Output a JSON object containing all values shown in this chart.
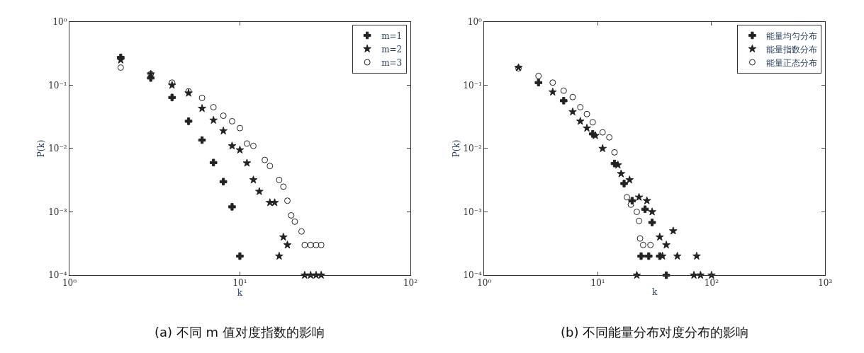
{
  "chart_data": [
    {
      "type": "scatter",
      "xlabel": "k",
      "ylabel": "P(k)",
      "annotations": [
        "(a) 不同 m 值对度指数的影响"
      ],
      "log": "xy",
      "grid": false,
      "legend": "top right",
      "xlim": [
        1,
        100
      ],
      "ylim": [
        0.0001,
        1
      ],
      "xticks": [
        {
          "value": 1,
          "label": "10⁰"
        },
        {
          "value": 10,
          "label": "10¹"
        },
        {
          "value": 100,
          "label": "10²"
        }
      ],
      "yticks": [
        {
          "value": 0.0001,
          "label": "10⁻⁴"
        },
        {
          "value": 0.001,
          "label": "10⁻³"
        },
        {
          "value": 0.01,
          "label": "10⁻²"
        },
        {
          "value": 0.1,
          "label": "10⁻¹"
        },
        {
          "value": 1,
          "label": "10⁰"
        }
      ],
      "series": [
        {
          "name": "m=1",
          "color": "#222222",
          "marker": "cross",
          "x": [
            2,
            3,
            4,
            5,
            6,
            7,
            8,
            9,
            10
          ],
          "values": [
            0.275,
            0.13,
            0.064,
            0.027,
            0.0136,
            0.006,
            0.003,
            0.0012,
            0.0002
          ]
        },
        {
          "name": "m=2",
          "color": "#222222",
          "marker": "star",
          "x": [
            2,
            3,
            4,
            5,
            6,
            7,
            8,
            9,
            10,
            11,
            12,
            13,
            15,
            16,
            17,
            18,
            19,
            24,
            26,
            28,
            30
          ],
          "values": [
            0.25,
            0.15,
            0.1,
            0.075,
            0.043,
            0.028,
            0.019,
            0.011,
            0.0095,
            0.0059,
            0.0032,
            0.0021,
            0.0014,
            0.0014,
            0.0002,
            0.0004,
            0.0003,
            0.0001,
            0.0001,
            0.0001,
            0.0001
          ]
        },
        {
          "name": "m=3",
          "color": "#222222",
          "marker": "circle",
          "x": [
            2,
            3,
            4,
            5,
            6,
            7,
            8,
            9,
            10,
            11,
            12,
            14,
            15,
            17,
            18,
            19,
            20,
            21,
            23,
            24,
            26,
            28,
            30
          ],
          "values": [
            0.19,
            0.15,
            0.11,
            0.08,
            0.063,
            0.045,
            0.033,
            0.027,
            0.021,
            0.012,
            0.011,
            0.0066,
            0.0053,
            0.0032,
            0.0025,
            0.0015,
            0.00088,
            0.0007,
            0.00049,
            0.0003,
            0.0003,
            0.0003,
            0.0003
          ]
        }
      ]
    },
    {
      "type": "scatter",
      "xlabel": "k",
      "ylabel": "P(k)",
      "annotations": [
        "(b) 不同能量分布对度分布的影响"
      ],
      "log": "xy",
      "grid": false,
      "legend": "top right",
      "xlim": [
        1,
        1000
      ],
      "ylim": [
        0.0001,
        1
      ],
      "xticks": [
        {
          "value": 1,
          "label": "10⁰"
        },
        {
          "value": 10,
          "label": "10¹"
        },
        {
          "value": 100,
          "label": "10²"
        },
        {
          "value": 1000,
          "label": "10³"
        }
      ],
      "yticks": [
        {
          "value": 0.0001,
          "label": "10⁻⁴"
        },
        {
          "value": 0.001,
          "label": "10⁻³"
        },
        {
          "value": 0.01,
          "label": "10⁻²"
        },
        {
          "value": 0.1,
          "label": "10⁻¹"
        },
        {
          "value": 1,
          "label": "10⁰"
        }
      ],
      "series": [
        {
          "name": "能量均匀分布",
          "color": "#222222",
          "marker": "cross",
          "x": [
            3,
            5,
            7,
            9,
            11,
            14,
            17,
            20,
            24,
            26,
            28,
            30,
            35,
            40
          ],
          "values": [
            0.11,
            0.057,
            null,
            0.017,
            null,
            0.0058,
            0.0028,
            0.0015,
            0.0002,
            0.0011,
            0.0002,
            0.00068,
            0.0002,
            0.0001
          ]
        },
        {
          "name": "能量指数分布",
          "color": "#222222",
          "marker": "star",
          "x": [
            2,
            4,
            6,
            7,
            8,
            9.5,
            11,
            15,
            16,
            19,
            22,
            23,
            27,
            30,
            35,
            37,
            40,
            46,
            50,
            70,
            74,
            80,
            100
          ],
          "values": [
            0.19,
            0.078,
            0.038,
            0.027,
            0.021,
            0.016,
            0.01,
            0.0055,
            0.004,
            0.0032,
            0.0001,
            0.0017,
            0.0015,
            0.001,
            0.0004,
            0.0002,
            0.0003,
            0.0005,
            0.0002,
            0.0001,
            0.0002,
            0.0001,
            0.0001
          ]
        },
        {
          "name": "能量正态分布",
          "color": "#222222",
          "marker": "circle",
          "x": [
            2,
            3,
            4,
            5,
            6,
            7,
            8,
            9,
            11,
            12.6,
            14,
            18,
            19.5,
            22,
            23,
            23.5,
            25,
            29
          ],
          "values": [
            0.185,
            0.14,
            0.11,
            0.082,
            0.065,
            0.045,
            0.035,
            0.026,
            0.018,
            0.015,
            0.0087,
            0.0017,
            0.0013,
            0.001,
            0.00072,
            0.00038,
            0.0003,
            0.0003
          ]
        }
      ]
    }
  ]
}
